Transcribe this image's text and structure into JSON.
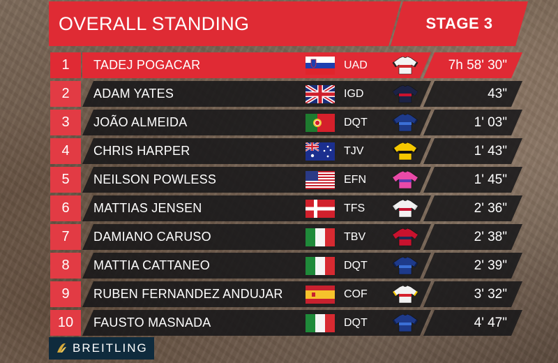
{
  "header": {
    "title": "OVERALL STANDING",
    "stage": "STAGE 3",
    "accent_color": "#df2b34"
  },
  "standings": [
    {
      "position": "1",
      "rider": "TADEJ POGACAR",
      "team": "UAD",
      "time": "7h 58' 30\"",
      "flag": "slovenia-flag",
      "jersey": "uad-jersey"
    },
    {
      "position": "2",
      "rider": "ADAM YATES",
      "team": "IGD",
      "time": "43\"",
      "flag": "uk-flag",
      "jersey": "igd-jersey"
    },
    {
      "position": "3",
      "rider": "JOÃO ALMEIDA",
      "team": "DQT",
      "time": "1' 03\"",
      "flag": "portugal-flag",
      "jersey": "dqt-jersey"
    },
    {
      "position": "4",
      "rider": "CHRIS HARPER",
      "team": "TJV",
      "time": "1' 43\"",
      "flag": "australia-flag",
      "jersey": "tjv-jersey"
    },
    {
      "position": "5",
      "rider": "NEILSON POWLESS",
      "team": "EFN",
      "time": "1' 45\"",
      "flag": "usa-flag",
      "jersey": "efn-jersey"
    },
    {
      "position": "6",
      "rider": "MATTIAS JENSEN",
      "team": "TFS",
      "time": "2' 36\"",
      "flag": "denmark-flag",
      "jersey": "tfs-jersey"
    },
    {
      "position": "7",
      "rider": "DAMIANO CARUSO",
      "team": "TBV",
      "time": "2' 38\"",
      "flag": "italy-flag",
      "jersey": "tbv-jersey"
    },
    {
      "position": "8",
      "rider": "MATTIA CATTANEO",
      "team": "DQT",
      "time": "2' 39\"",
      "flag": "italy-flag",
      "jersey": "dqt-jersey"
    },
    {
      "position": "9",
      "rider": "RUBEN FERNANDEZ ANDUJAR",
      "team": "COF",
      "time": "3' 32\"",
      "flag": "spain-flag",
      "jersey": "cof-jersey"
    },
    {
      "position": "10",
      "rider": "FAUSTO MASNADA",
      "team": "DQT",
      "time": "4' 47\"",
      "flag": "italy-flag",
      "jersey": "dqt-jersey"
    }
  ],
  "sponsor": {
    "name": "BREITLING",
    "icon": "breitling-logo-icon",
    "color": "#0f2b3d"
  }
}
